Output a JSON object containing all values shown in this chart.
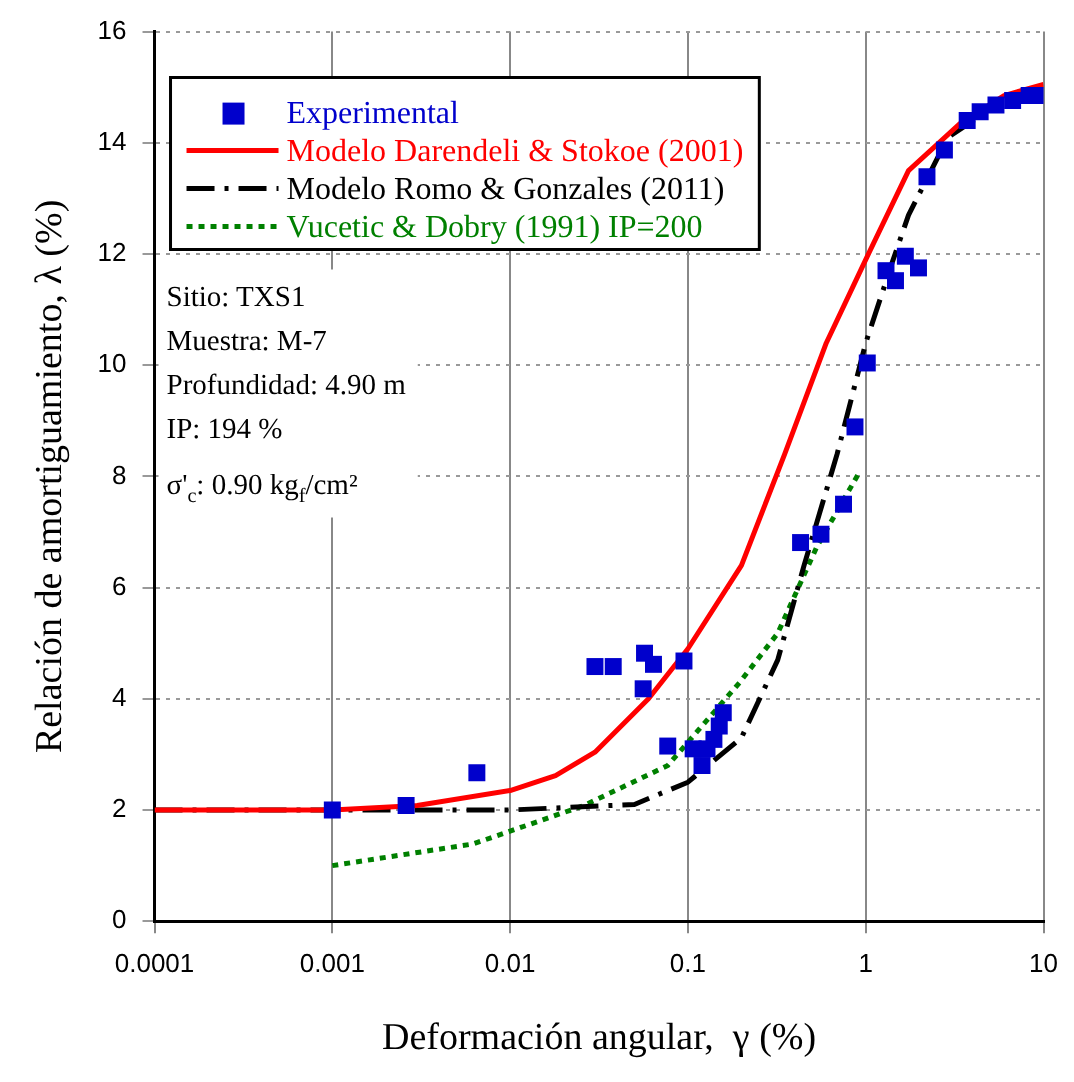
{
  "chart_data": {
    "type": "line",
    "xlabel": "Deformación angular,  γ (%)",
    "ylabel": "Relación de amortiguamiento, λ (%)",
    "log": "x",
    "xlim": [
      0.0001,
      10
    ],
    "xticks": [
      0.0001,
      0.001,
      0.01,
      0.1,
      1,
      10
    ],
    "ylim": [
      0,
      16
    ],
    "yticks": [
      0,
      2,
      4,
      6,
      8,
      10,
      12,
      14,
      16
    ],
    "grid": true,
    "legend": "top left",
    "annotations": [
      "Sitio: TXS1",
      "Muestra: M-7",
      "Profundidad: 4.90 m",
      "IP: 194 %",
      "σ'$_{c}$: 0.90 kg$_{f}$/cm²"
    ],
    "series": [
      {
        "name": "Experimental",
        "type": "scatter",
        "marker": "square",
        "color": "#0000cc",
        "x": [
          0.001,
          0.0026,
          0.0065,
          0.03,
          0.038,
          0.057,
          0.064,
          0.056,
          0.095,
          0.077,
          0.107,
          0.128,
          0.12,
          0.14,
          0.15,
          0.158,
          0.43,
          0.56,
          0.75,
          0.87,
          1.02,
          1.3,
          1.47,
          1.67,
          1.98,
          2.21,
          2.77,
          3.72,
          4.4,
          5.4,
          6.7,
          8.3,
          9.4
        ],
        "values": [
          2.0,
          2.08,
          2.67,
          4.58,
          4.58,
          4.82,
          4.62,
          4.18,
          4.68,
          3.15,
          3.1,
          3.1,
          2.8,
          3.27,
          3.51,
          3.75,
          6.81,
          6.96,
          7.5,
          8.89,
          10.04,
          11.7,
          11.52,
          11.96,
          11.75,
          13.39,
          13.87,
          14.4,
          14.56,
          14.68,
          14.76,
          14.85,
          14.85
        ]
      },
      {
        "name": "Modelo Darendeli & Stokoe (2001)",
        "type": "line",
        "line_style": "solid",
        "color": "#ff0000",
        "x": [
          0.0001,
          0.001,
          0.003,
          0.01,
          0.018,
          0.03,
          0.06,
          0.1,
          0.2,
          0.35,
          0.6,
          1,
          1.74,
          3.4,
          6,
          10
        ],
        "values": [
          2,
          2,
          2.08,
          2.35,
          2.62,
          3.04,
          4.0,
          4.9,
          6.4,
          8.4,
          10.4,
          11.9,
          13.5,
          14.35,
          14.85,
          15.05
        ]
      },
      {
        "name": "Modelo Romo & Gonzales (2011)",
        "type": "line",
        "line_style": "dashed",
        "color": "#000000",
        "x": [
          0.0001,
          0.01,
          0.05,
          0.1,
          0.2,
          0.32,
          0.45,
          0.69,
          1,
          1.41,
          1.74,
          2.9,
          5
        ],
        "values": [
          2,
          2,
          2.1,
          2.5,
          3.3,
          4.7,
          6.4,
          8.4,
          10.4,
          11.85,
          12.7,
          14.1,
          14.6
        ]
      },
      {
        "name": "Vucetic & Dobry (1991) IP=200",
        "type": "line",
        "line_style": "dotted",
        "color": "#008000",
        "x": [
          0.001,
          0.0062,
          0.026,
          0.077,
          0.195,
          0.32,
          0.53,
          0.93
        ],
        "values": [
          1.0,
          1.39,
          2.08,
          2.8,
          4.29,
          5.18,
          6.73,
          8.1
        ]
      }
    ]
  }
}
